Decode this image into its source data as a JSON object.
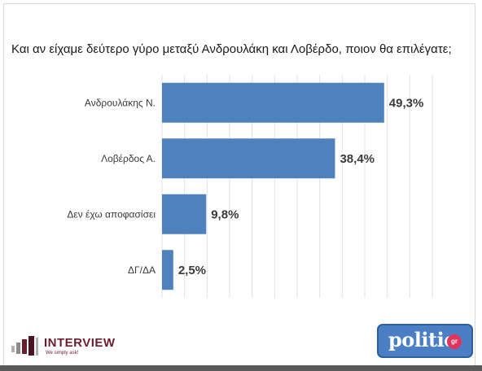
{
  "title": "Και αν είχαμε δεύτερο γύρο μεταξύ Ανδρουλάκη και Λοβέρδο, ποιον θα επιλέγατε;",
  "chart_data": {
    "type": "bar",
    "orientation": "horizontal",
    "title": "Και αν είχαμε δεύτερο γύρο μεταξύ Ανδρουλάκη και Λοβέρδο, ποιον θα επιλέγατε;",
    "categories": [
      "Ανδρουλάκης Ν.",
      "Λοβέρδος Α.",
      "Δεν έχω αποφασίσει",
      "ΔΓ/ΔΑ"
    ],
    "values": [
      49.3,
      38.4,
      9.8,
      2.5
    ],
    "value_labels": [
      "49,3%",
      "38,4%",
      "9,8%",
      "2,5%"
    ],
    "xlim": [
      0,
      60
    ],
    "grid": true,
    "bar_color": "#4f81bd"
  },
  "logos": {
    "interview": {
      "name": "INTERVIEW",
      "tagline": "We simply ask!"
    },
    "politic": {
      "name": "politic",
      "badge": "gr"
    }
  }
}
